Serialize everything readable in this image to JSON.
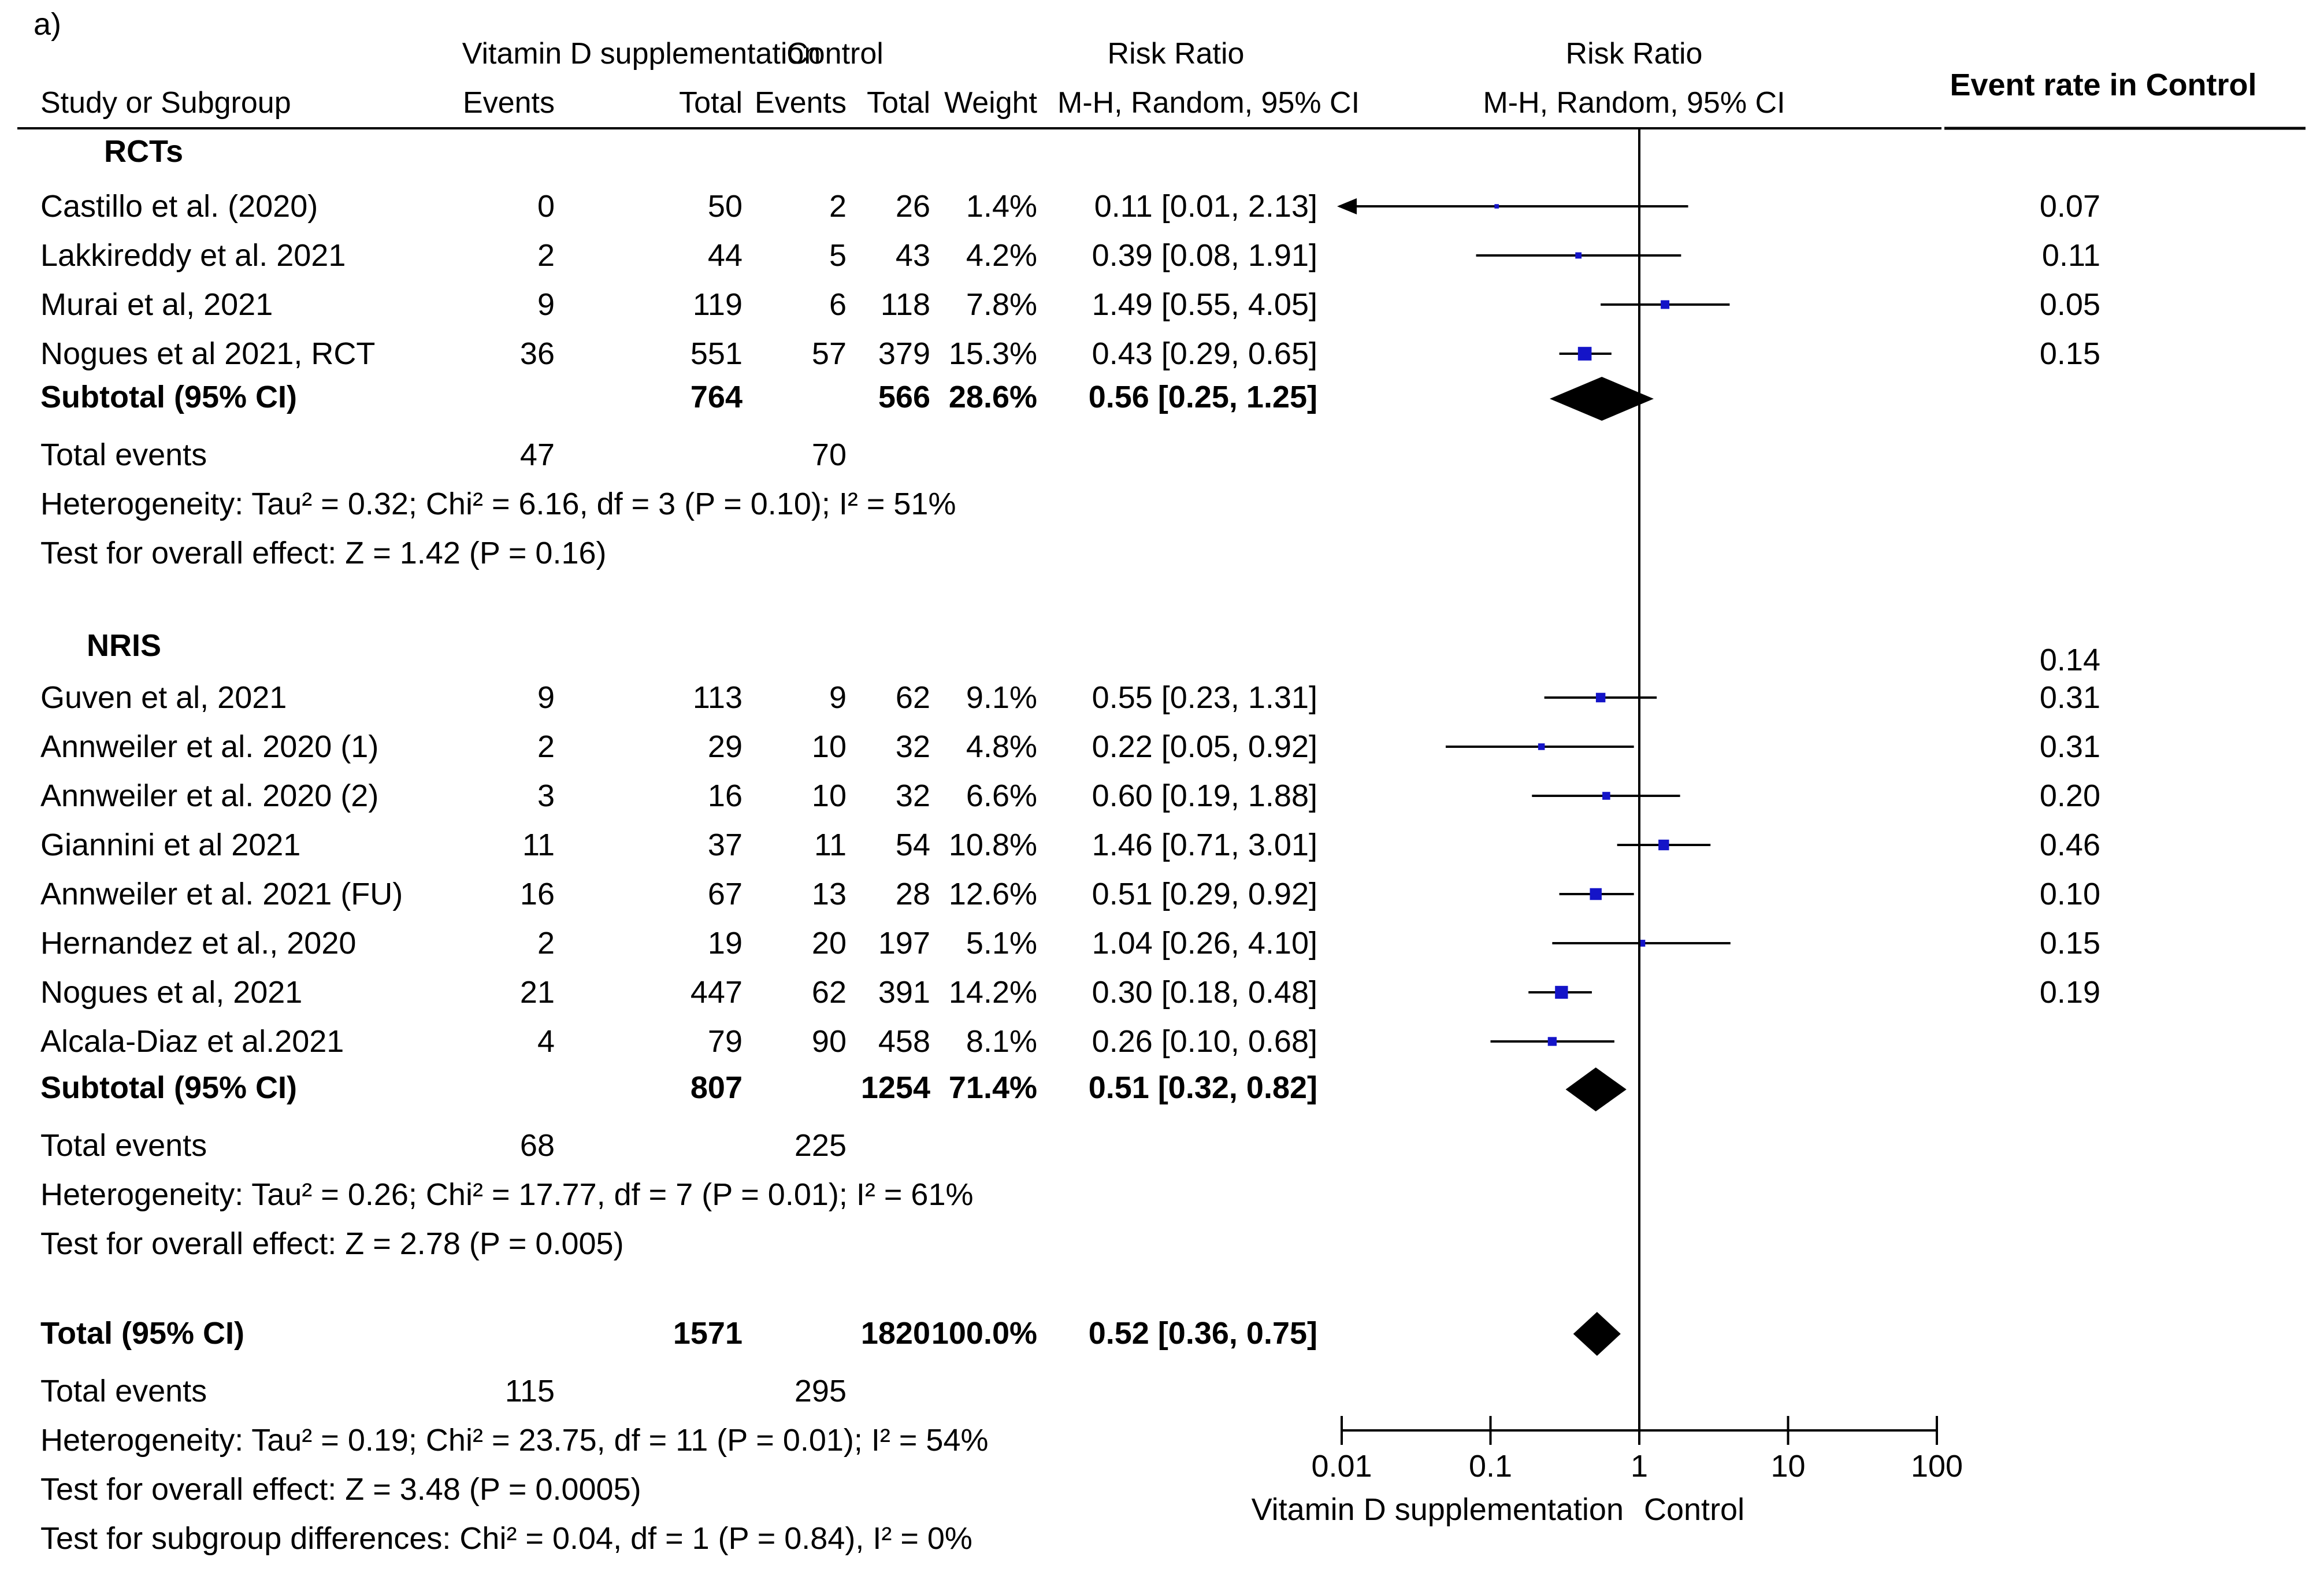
{
  "panel_label": "a)",
  "headers": {
    "group_vitd": "Vitamin D supplementation",
    "group_control": "Control",
    "rr_title": "Risk Ratio",
    "plot_title": "Risk Ratio",
    "study": "Study or Subgroup",
    "events_vitd": "Events",
    "total_vitd": "Total",
    "events_control": "Events",
    "total_control": "Total",
    "weight": "Weight",
    "rr_method": "M-H, Random, 95% CI",
    "plot_method": "M-H, Random, 95% CI",
    "event_rate": "Event rate in Control"
  },
  "colors": {
    "marker": "#1414c8",
    "line": "#000000",
    "diamond": "#000000"
  },
  "chart_data": {
    "type": "forest",
    "title": "Risk Ratio",
    "subtitle": "M-H, Random, 95% CI",
    "x_scale": "log",
    "xlim": [
      0.01,
      100
    ],
    "ticks": [
      {
        "value": 0.01,
        "label": "0.01"
      },
      {
        "value": 0.1,
        "label": "0.1"
      },
      {
        "value": 1,
        "label": "1"
      },
      {
        "value": 10,
        "label": "10"
      },
      {
        "value": 100,
        "label": "100"
      }
    ],
    "reference_line": 1,
    "favours_left": "Vitamin D supplementation",
    "favours_right": "Control",
    "subgroups": [
      {
        "name": "RCTs",
        "studies": [
          {
            "name": "Castillo et al. (2020)",
            "ev_t": "0",
            "tot_t": "50",
            "ev_c": "2",
            "tot_c": "26",
            "weight": "1.4%",
            "ci_text": "0.11 [0.01, 2.13]",
            "rr": 0.11,
            "lo": 0.01,
            "hi": 2.13,
            "w": 1.4,
            "arrow_left": true,
            "event_rate": "0.07"
          },
          {
            "name": "Lakkireddy et al. 2021",
            "ev_t": "2",
            "tot_t": "44",
            "ev_c": "5",
            "tot_c": "43",
            "weight": "4.2%",
            "ci_text": "0.39 [0.08, 1.91]",
            "rr": 0.39,
            "lo": 0.08,
            "hi": 1.91,
            "w": 4.2,
            "event_rate": "0.11"
          },
          {
            "name": "Murai et al, 2021",
            "ev_t": "9",
            "tot_t": "119",
            "ev_c": "6",
            "tot_c": "118",
            "weight": "7.8%",
            "ci_text": "1.49 [0.55, 4.05]",
            "rr": 1.49,
            "lo": 0.55,
            "hi": 4.05,
            "w": 7.8,
            "event_rate": "0.05"
          },
          {
            "name": "Nogues et al 2021, RCT",
            "ev_t": "36",
            "tot_t": "551",
            "ev_c": "57",
            "tot_c": "379",
            "weight": "15.3%",
            "ci_text": "0.43 [0.29, 0.65]",
            "rr": 0.43,
            "lo": 0.29,
            "hi": 0.65,
            "w": 15.3,
            "event_rate": "0.15"
          }
        ],
        "subtotal": {
          "label": "Subtotal (95% CI)",
          "tot_t": "764",
          "tot_c": "566",
          "weight": "28.6%",
          "ci_text": "0.56 [0.25, 1.25]",
          "rr": 0.56,
          "lo": 0.25,
          "hi": 1.25
        },
        "total_events": {
          "label": "Total events",
          "t": "47",
          "c": "70"
        },
        "heterogeneity": "Heterogeneity: Tau² = 0.32; Chi² = 6.16, df = 3 (P = 0.10); I² = 51%",
        "overall_effect": "Test for overall effect: Z = 1.42 (P = 0.16)"
      },
      {
        "name": "NRIS",
        "heading_event_rate": "0.14",
        "studies": [
          {
            "name": "Guven et al, 2021",
            "ev_t": "9",
            "tot_t": "113",
            "ev_c": "9",
            "tot_c": "62",
            "weight": "9.1%",
            "ci_text": "0.55 [0.23, 1.31]",
            "rr": 0.55,
            "lo": 0.23,
            "hi": 1.31,
            "w": 9.1,
            "event_rate": "0.31"
          },
          {
            "name": "Annweiler et al. 2020 (1)",
            "ev_t": "2",
            "tot_t": "29",
            "ev_c": "10",
            "tot_c": "32",
            "weight": "4.8%",
            "ci_text": "0.22 [0.05, 0.92]",
            "rr": 0.22,
            "lo": 0.05,
            "hi": 0.92,
            "w": 4.8,
            "event_rate": "0.31"
          },
          {
            "name": "Annweiler et al. 2020 (2)",
            "ev_t": "3",
            "tot_t": "16",
            "ev_c": "10",
            "tot_c": "32",
            "weight": "6.6%",
            "ci_text": "0.60 [0.19, 1.88]",
            "rr": 0.6,
            "lo": 0.19,
            "hi": 1.88,
            "w": 6.6,
            "event_rate": "0.20"
          },
          {
            "name": "Giannini et al 2021",
            "ev_t": "11",
            "tot_t": "37",
            "ev_c": "11",
            "tot_c": "54",
            "weight": "10.8%",
            "ci_text": "1.46 [0.71, 3.01]",
            "rr": 1.46,
            "lo": 0.71,
            "hi": 3.01,
            "w": 10.8,
            "event_rate": "0.46"
          },
          {
            "name": "Annweiler et al. 2021 (FU)",
            "ev_t": "16",
            "tot_t": "67",
            "ev_c": "13",
            "tot_c": "28",
            "weight": "12.6%",
            "ci_text": "0.51 [0.29, 0.92]",
            "rr": 0.51,
            "lo": 0.29,
            "hi": 0.92,
            "w": 12.6,
            "event_rate": "0.10"
          },
          {
            "name": "Hernandez et al.,  2020",
            "ev_t": "2",
            "tot_t": "19",
            "ev_c": "20",
            "tot_c": "197",
            "weight": "5.1%",
            "ci_text": "1.04 [0.26, 4.10]",
            "rr": 1.04,
            "lo": 0.26,
            "hi": 4.1,
            "w": 5.1,
            "event_rate": "0.15"
          },
          {
            "name": "Nogues et al, 2021",
            "ev_t": "21",
            "tot_t": "447",
            "ev_c": "62",
            "tot_c": "391",
            "weight": "14.2%",
            "ci_text": "0.30 [0.18, 0.48]",
            "rr": 0.3,
            "lo": 0.18,
            "hi": 0.48,
            "w": 14.2,
            "event_rate": "0.19"
          },
          {
            "name": "Alcala-Diaz et al.2021",
            "ev_t": "4",
            "tot_t": "79",
            "ev_c": "90",
            "tot_c": "458",
            "weight": "8.1%",
            "ci_text": "0.26 [0.10, 0.68]",
            "rr": 0.26,
            "lo": 0.1,
            "hi": 0.68,
            "w": 8.1
          }
        ],
        "subtotal": {
          "label": "Subtotal (95% CI)",
          "tot_t": "807",
          "tot_c": "1254",
          "weight": "71.4%",
          "ci_text": "0.51 [0.32, 0.82]",
          "rr": 0.51,
          "lo": 0.32,
          "hi": 0.82
        },
        "total_events": {
          "label": "Total events",
          "t": "68",
          "c": "225"
        },
        "heterogeneity": "Heterogeneity: Tau² = 0.26; Chi² = 17.77, df = 7 (P = 0.01); I² = 61%",
        "overall_effect": "Test for overall effect: Z = 2.78 (P = 0.005)"
      }
    ],
    "overall": {
      "label": "Total (95% CI)",
      "tot_t": "1571",
      "tot_c": "1820",
      "weight": "100.0%",
      "ci_text": "0.52 [0.36, 0.75]",
      "rr": 0.52,
      "lo": 0.36,
      "hi": 0.75,
      "total_events": {
        "label": "Total events",
        "t": "115",
        "c": "295"
      },
      "heterogeneity": "Heterogeneity: Tau² = 0.19; Chi² = 23.75, df = 11 (P = 0.01); I² = 54%",
      "overall_effect": "Test for overall effect: Z = 3.48 (P = 0.0005)",
      "subgroup_diff": "Test for subgroup differences: Chi² = 0.04, df = 1 (P = 0.84), I² = 0%"
    }
  }
}
